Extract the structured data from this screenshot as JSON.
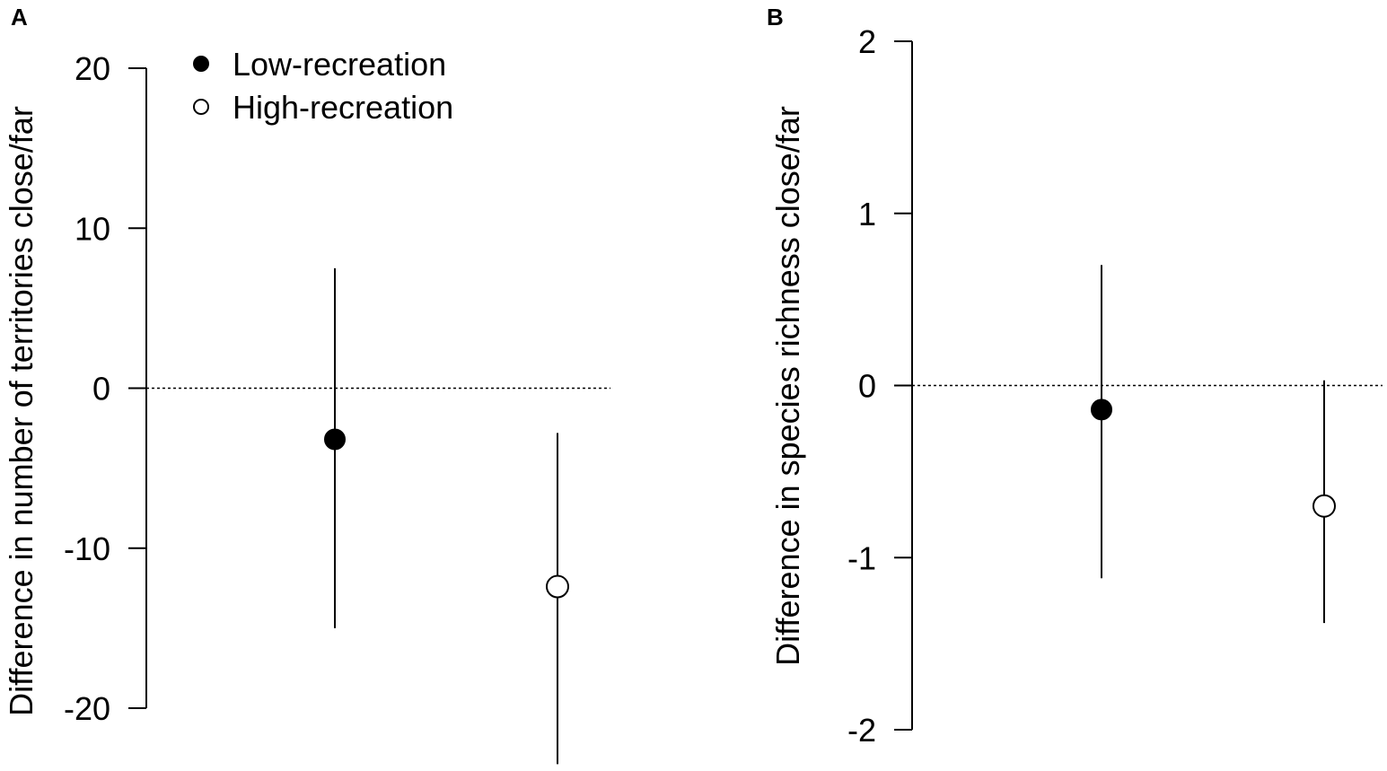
{
  "chart_data": [
    {
      "type": "scatter",
      "panel": "A",
      "ylabel": "Difference in number of territories close/far",
      "ylim": [
        -20,
        20
      ],
      "yticks": [
        20,
        10,
        0,
        -10,
        -20
      ],
      "yticklabels": [
        "20",
        "10",
        "0",
        "-10",
        "-20"
      ],
      "reference_line": {
        "y": 0,
        "style": "dotted"
      },
      "series": [
        {
          "name": "Low-recreation",
          "marker": "filled-circle",
          "x": 1,
          "y": -3.2,
          "ci": [
            -15.0,
            7.5
          ]
        },
        {
          "name": "High-recreation",
          "marker": "open-circle",
          "x": 2,
          "y": -12.4,
          "ci": [
            -23.5,
            -2.8
          ]
        }
      ],
      "legend": {
        "placement": "top-left",
        "entries": [
          {
            "label": "Low-recreation",
            "marker": "filled-circle"
          },
          {
            "label": "High-recreation",
            "marker": "open-circle"
          }
        ]
      }
    },
    {
      "type": "scatter",
      "panel": "B",
      "ylabel": "Difference in species richness close/far",
      "ylim": [
        -2,
        2
      ],
      "yticks": [
        2,
        1,
        0,
        -1,
        -2
      ],
      "yticklabels": [
        "2",
        "1",
        "0",
        "-1",
        "-2"
      ],
      "reference_line": {
        "y": 0,
        "style": "dotted"
      },
      "series": [
        {
          "name": "Low-recreation",
          "marker": "filled-circle",
          "x": 1,
          "y": -0.14,
          "ci": [
            -1.12,
            0.7
          ]
        },
        {
          "name": "High-recreation",
          "marker": "open-circle",
          "x": 2,
          "y": -0.7,
          "ci": [
            -1.38,
            0.03
          ]
        }
      ]
    }
  ]
}
